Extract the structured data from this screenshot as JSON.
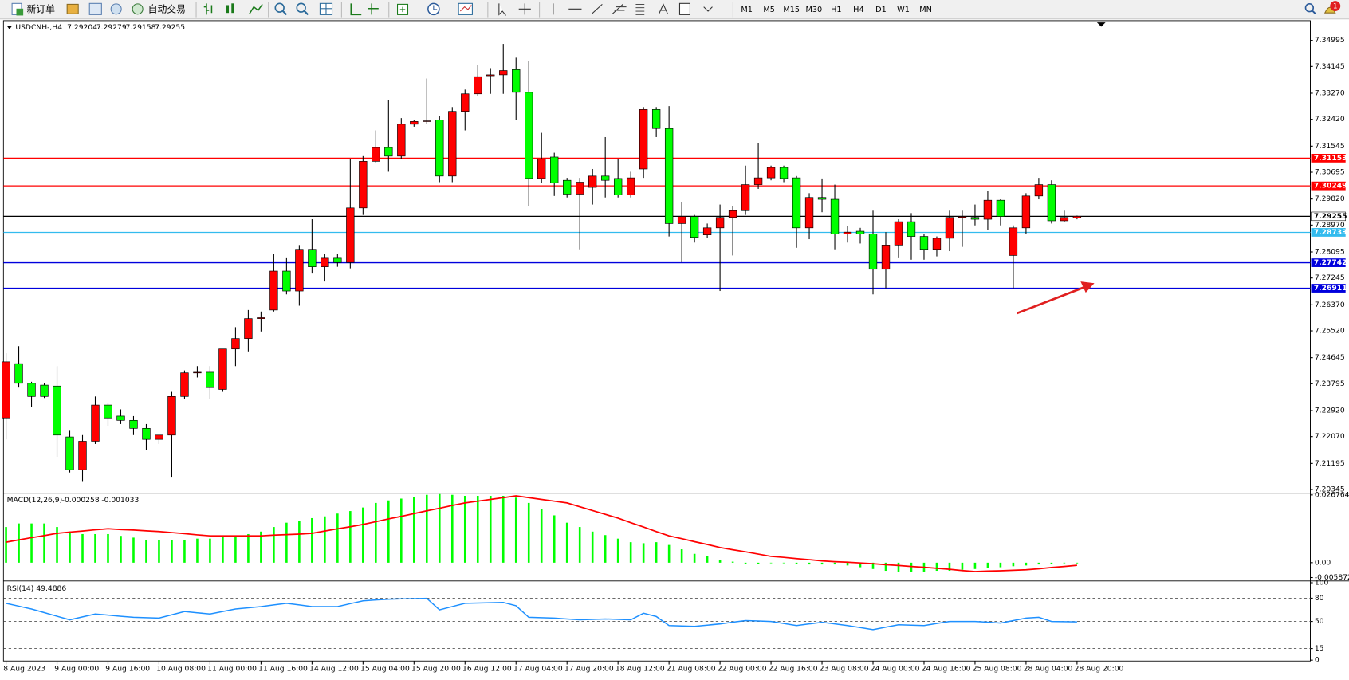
{
  "toolbar": {
    "new_order": "新订单",
    "auto_trading": "自动交易",
    "timeframes": [
      "M1",
      "M5",
      "M15",
      "M30",
      "H1",
      "H4",
      "D1",
      "W1",
      "MN"
    ],
    "notifications": 1
  },
  "chart_data": [
    {
      "type": "candlestick",
      "title": "USDCNH-,H4",
      "quote": [
        7.29204,
        7.29279,
        7.29158,
        7.29255
      ],
      "up_color": "#ff0000",
      "down_color": "#00ff00",
      "wick_color": "#000000",
      "grid": false,
      "ylim": [
        7.2028,
        7.3561
      ],
      "yticks": [
        7.34995,
        7.34145,
        {
          "value": 7.3327,
          "label": "7.33270"
        },
        {
          "value": 7.3242,
          "label": "7.32420"
        },
        7.31545,
        7.30695,
        {
          "value": 7.2982,
          "label": "7.29820"
        },
        {
          "value": 7.2897,
          "label": "7.28970"
        },
        7.28095,
        7.27245,
        {
          "value": 7.2637,
          "label": "7.26370"
        },
        {
          "value": 7.2552,
          "label": "7.25520"
        },
        7.24645,
        7.23795,
        {
          "value": 7.2292,
          "label": "7.22920"
        },
        {
          "value": 7.2207,
          "label": "7.22070"
        },
        7.21195,
        7.20345
      ],
      "levels": [
        {
          "value": 7.31153,
          "color": "#ff0000"
        },
        {
          "value": 7.30249,
          "color": "#ff0000"
        },
        {
          "value": 7.29255,
          "color": "#000000"
        },
        {
          "value": 7.28733,
          "color": "#33bbee"
        },
        {
          "value": 7.27742,
          "color": "#0000dd"
        },
        {
          "value": 7.26911,
          "color": "#0000dd"
        }
      ],
      "categories": [
        "8 Aug 2023",
        null,
        null,
        null,
        "9 Aug 00:00",
        null,
        null,
        null,
        "9 Aug 16:00",
        null,
        null,
        null,
        "10 Aug 08:00",
        null,
        null,
        null,
        "11 Aug 00:00",
        null,
        null,
        null,
        "11 Aug 16:00",
        null,
        null,
        null,
        "14 Aug 12:00",
        null,
        null,
        null,
        "15 Aug 04:00",
        null,
        null,
        null,
        "15 Aug 20:00",
        null,
        null,
        null,
        "16 Aug 12:00",
        null,
        null,
        null,
        "17 Aug 04:00",
        null,
        null,
        null,
        "17 Aug 20:00",
        null,
        null,
        null,
        "18 Aug 12:00",
        null,
        null,
        null,
        "21 Aug 08:00",
        null,
        null,
        null,
        "22 Aug 00:00",
        null,
        null,
        null,
        "22 Aug 16:00",
        null,
        null,
        null,
        "23 Aug 08:00",
        null,
        null,
        null,
        "24 Aug 00:00",
        null,
        null,
        null,
        "24 Aug 16:00",
        null,
        null,
        null,
        "25 Aug 08:00",
        null,
        null,
        null,
        "28 Aug 04:00",
        null,
        null,
        null,
        "28 Aug 20:00"
      ],
      "open": [
        7.2268,
        7.2445,
        7.2381,
        7.2375,
        7.2372,
        7.2206,
        7.2099,
        7.2192,
        7.231,
        7.2274,
        7.226,
        7.2234,
        7.2198,
        7.2212,
        7.2338,
        7.2415,
        7.2417,
        7.2361,
        7.2493,
        7.2527,
        7.2592,
        7.262,
        7.2747,
        7.2682,
        7.2818,
        7.2761,
        7.2789,
        7.2775,
        7.2953,
        7.3105,
        7.315,
        7.3122,
        7.3226,
        7.3235,
        7.324,
        7.3057,
        7.3268,
        7.3325,
        7.3384,
        7.3387,
        7.3404,
        7.333,
        7.3049,
        7.3119,
        7.3043,
        7.2998,
        7.302,
        7.3057,
        7.3049,
        7.2995,
        7.308,
        7.3274,
        7.3212,
        7.2902,
        7.2925,
        7.2865,
        7.2888,
        7.2922,
        7.2944,
        7.3029,
        7.3051,
        7.3085,
        7.3051,
        7.2888,
        7.2987,
        7.2981,
        7.2868,
        7.2877,
        7.2868,
        7.2753,
        7.2832,
        7.2908,
        7.286,
        7.2818,
        7.2854,
        7.2922,
        7.2922,
        7.2916,
        7.2978,
        7.2798,
        7.2888,
        7.2992,
        7.3029,
        7.2911,
        7.29204
      ],
      "high": [
        7.2479,
        7.2502,
        7.2386,
        7.2381,
        7.2437,
        7.2226,
        7.2212,
        7.2338,
        7.2316,
        7.2296,
        7.2274,
        7.2248,
        7.2212,
        7.2353,
        7.2423,
        7.2437,
        7.2437,
        7.2493,
        7.2564,
        7.262,
        7.2615,
        7.2803,
        7.2789,
        7.2832,
        7.2916,
        7.2803,
        7.2803,
        7.3113,
        7.3122,
        7.3206,
        7.3305,
        7.3246,
        7.324,
        7.3375,
        7.3254,
        7.3282,
        7.3339,
        7.3418,
        7.3409,
        7.3488,
        7.3443,
        7.3432,
        7.3198,
        7.3133,
        7.3051,
        7.3051,
        7.308,
        7.3184,
        7.3113,
        7.3071,
        7.3282,
        7.3282,
        7.3285,
        7.2973,
        7.293,
        7.2902,
        7.2964,
        7.2958,
        7.3091,
        7.3164,
        7.3091,
        7.3091,
        7.3057,
        7.3001,
        7.3049,
        7.3029,
        7.2894,
        7.2888,
        7.2944,
        7.2874,
        7.2916,
        7.2936,
        7.2868,
        7.286,
        7.2944,
        7.2944,
        7.2964,
        7.3009,
        7.2981,
        7.2896,
        7.3001,
        7.3051,
        7.3043,
        7.2944,
        7.29279
      ],
      "low": [
        7.2198,
        7.2367,
        7.2305,
        7.2333,
        7.2141,
        7.209,
        7.2062,
        7.2183,
        7.224,
        7.2248,
        7.2212,
        7.2164,
        7.2183,
        7.2076,
        7.233,
        7.24,
        7.233,
        7.2353,
        7.2437,
        7.2485,
        7.255,
        7.2615,
        7.2671,
        7.2634,
        7.2739,
        7.2713,
        7.2761,
        7.2756,
        7.293,
        7.3099,
        7.3071,
        7.3113,
        7.3218,
        7.3226,
        7.3037,
        7.3037,
        7.3206,
        7.3319,
        7.3325,
        7.3325,
        7.324,
        7.2958,
        7.3035,
        7.2992,
        7.2987,
        7.2818,
        7.2964,
        7.2987,
        7.2987,
        7.2987,
        7.3051,
        7.3184,
        7.286,
        7.2775,
        7.284,
        7.2854,
        7.2682,
        7.2798,
        7.293,
        7.3015,
        7.3043,
        7.3037,
        7.2823,
        7.2851,
        7.2939,
        7.2818,
        7.284,
        7.2837,
        7.2671,
        7.2691,
        7.2789,
        7.2784,
        7.2784,
        7.2795,
        7.2812,
        7.2826,
        7.2896,
        7.288,
        7.2896,
        7.2691,
        7.2868,
        7.2981,
        7.2902,
        7.2908,
        7.29158
      ],
      "close": [
        7.2451,
        7.2381,
        7.2338,
        7.2338,
        7.2212,
        7.2099,
        7.2192,
        7.231,
        7.2268,
        7.226,
        7.2234,
        7.2198,
        7.2212,
        7.2338,
        7.2415,
        7.2417,
        7.2367,
        7.2493,
        7.2527,
        7.2592,
        7.2595,
        7.2747,
        7.2682,
        7.2818,
        7.2761,
        7.2789,
        7.2775,
        7.2953,
        7.3105,
        7.315,
        7.3122,
        7.3226,
        7.3235,
        7.3237,
        7.3057,
        7.3268,
        7.3325,
        7.3381,
        7.3387,
        7.3401,
        7.333,
        7.3049,
        7.3113,
        7.3035,
        7.2998,
        7.3037,
        7.3057,
        7.3043,
        7.2995,
        7.3051,
        7.3274,
        7.3212,
        7.2902,
        7.2925,
        7.2857,
        7.2888,
        7.2922,
        7.2944,
        7.3029,
        7.3051,
        7.3085,
        7.3049,
        7.2888,
        7.2987,
        7.2981,
        7.2868,
        7.2874,
        7.2868,
        7.2753,
        7.2832,
        7.2908,
        7.286,
        7.2818,
        7.2854,
        7.2922,
        7.2925,
        7.2916,
        7.2978,
        7.2925,
        7.2888,
        7.2992,
        7.3029,
        7.2911,
        7.2922,
        7.29255
      ]
    },
    {
      "type": "macd",
      "title": "MACD(12,26,9)",
      "current": [
        -0.000258,
        -0.001033
      ],
      "ylim": [
        -0.005872,
        0.026764
      ],
      "yticks": [
        0.026764,
        {
          "value": 0,
          "label": "0.00"
        },
        -0.005872
      ],
      "series": [
        {
          "style": "histogram",
          "color": "#00ff00",
          "values": [
            0.0141,
            0.0155,
            0.0155,
            0.0155,
            0.0141,
            0.0123,
            0.0113,
            0.0113,
            0.0113,
            0.0106,
            0.0099,
            0.0088,
            0.0088,
            0.0088,
            0.0088,
            0.0095,
            0.0095,
            0.0106,
            0.0106,
            0.0113,
            0.0123,
            0.0141,
            0.0158,
            0.0165,
            0.0176,
            0.0183,
            0.0194,
            0.0204,
            0.0218,
            0.0236,
            0.0246,
            0.0253,
            0.026,
            0.0268,
            0.0271,
            0.0268,
            0.0264,
            0.0264,
            0.0264,
            0.0264,
            0.0257,
            0.0236,
            0.0211,
            0.0187,
            0.0158,
            0.0141,
            0.0123,
            0.0109,
            0.0095,
            0.0081,
            0.0077,
            0.0081,
            0.007,
            0.0053,
            0.0035,
            0.0025,
            0.0011,
            0.0004,
            -0.0004,
            -0.0004,
            0.0,
            0.0,
            -0.0004,
            -0.0007,
            -0.0007,
            -0.0007,
            -0.0011,
            -0.0018,
            -0.0025,
            -0.0032,
            -0.0035,
            -0.0035,
            -0.0035,
            -0.0032,
            -0.0032,
            -0.0028,
            -0.0025,
            -0.0021,
            -0.0018,
            -0.0014,
            -0.0011,
            -0.0007,
            -0.0004,
            -0.0001,
            -0.000258
          ]
        },
        {
          "style": "line",
          "color": "#ff0000",
          "values": [
            0.0081,
            0.009,
            0.0099,
            0.0107,
            0.0116,
            0.0121,
            0.0125,
            0.013,
            0.0134,
            0.0131,
            0.0129,
            0.0126,
            0.0123,
            0.0119,
            0.0115,
            0.011,
            0.0106,
            0.0106,
            0.0106,
            0.0106,
            0.0106,
            0.0109,
            0.0111,
            0.0113,
            0.0116,
            0.0125,
            0.0134,
            0.0142,
            0.0151,
            0.0162,
            0.0173,
            0.0183,
            0.0194,
            0.0205,
            0.0215,
            0.0226,
            0.0236,
            0.0243,
            0.025,
            0.0257,
            0.0264,
            0.0257,
            0.025,
            0.0243,
            0.0236,
            0.0221,
            0.0206,
            0.0191,
            0.0176,
            0.0158,
            0.0141,
            0.0123,
            0.0106,
            0.0095,
            0.0083,
            0.0072,
            0.006,
            0.0051,
            0.0043,
            0.0034,
            0.0025,
            0.0021,
            0.0016,
            0.0012,
            0.0007,
            0.0004,
            0.0002,
            -0.0001,
            -0.0004,
            -0.0008,
            -0.0011,
            -0.0015,
            -0.0018,
            -0.0022,
            -0.0026,
            -0.0031,
            -0.0035,
            -0.0033,
            -0.0032,
            -0.003,
            -0.0028,
            -0.0024,
            -0.0019,
            -0.0015,
            -0.001033
          ]
        }
      ]
    },
    {
      "type": "rsi",
      "title": "RSI(14)",
      "current": 49.4886,
      "color": "#1e90ff",
      "ylim": [
        0,
        100
      ],
      "yticks": [
        100,
        80,
        50,
        15,
        0
      ],
      "dashed_levels": [
        80,
        50,
        15
      ],
      "values": [
        73.4,
        69.7,
        66.0,
        61.4,
        56.7,
        52.1,
        55.9,
        59.6,
        58.2,
        56.7,
        55.3,
        54.8,
        54.3,
        58.6,
        62.8,
        61.2,
        59.6,
        62.8,
        66.0,
        67.6,
        69.1,
        71.3,
        73.4,
        71.3,
        69.1,
        69.1,
        69.1,
        72.9,
        76.6,
        77.7,
        78.7,
        79.1,
        79.4,
        79.8,
        64.9,
        69.2,
        73.4,
        73.8,
        74.1,
        74.5,
        70.2,
        55.3,
        54.8,
        54.3,
        53.2,
        52.1,
        52.7,
        53.2,
        52.7,
        52.1,
        60.6,
        56.4,
        44.7,
        44.2,
        43.6,
        45.2,
        46.8,
        49.0,
        51.1,
        50.6,
        50.0,
        47.4,
        44.7,
        46.8,
        48.9,
        46.8,
        44.7,
        42.1,
        39.4,
        42.6,
        45.7,
        45.2,
        44.7,
        47.4,
        50.0,
        50.0,
        50.0,
        49.0,
        47.9,
        51.1,
        54.3,
        55.3,
        50.0,
        49.7,
        49.4886
      ]
    }
  ]
}
